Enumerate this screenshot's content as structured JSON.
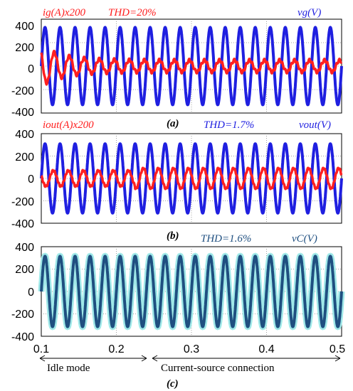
{
  "chart_data": [
    {
      "type": "line",
      "panel_label": "(a)",
      "ylim": [
        -400,
        400
      ],
      "yticks": [
        "400",
        "200",
        "0",
        "-200",
        "-400"
      ],
      "annotations": {
        "current_label": "ig(A)x200",
        "thd": "THD=20%",
        "voltage_label": "vg(V)"
      },
      "series": [
        {
          "name": "vg(V)",
          "color": "#1f1fe0",
          "amplitude": 330,
          "frequency_hz": 50
        },
        {
          "name": "ig(A)x200",
          "color": "#ff2020",
          "transient_peak": 170,
          "steady_amplitude": 50
        }
      ]
    },
    {
      "type": "line",
      "panel_label": "(b)",
      "ylim": [
        -400,
        400
      ],
      "yticks": [
        "400",
        "200",
        "0",
        "-200",
        "-400"
      ],
      "annotations": {
        "current_label": "iout(A)x200",
        "thd": "THD=1.7%",
        "voltage_label": "vout(V)"
      },
      "series": [
        {
          "name": "vout(V)",
          "color": "#1f1fe0",
          "amplitude": 310,
          "frequency_hz": 50
        },
        {
          "name": "iout(A)x200",
          "color": "#ff2020",
          "amplitude_idle": 70,
          "amplitude_after": 90
        }
      ]
    },
    {
      "type": "line",
      "panel_label": "(c)",
      "ylim": [
        -400,
        400
      ],
      "yticks": [
        "400",
        "200",
        "0",
        "-200",
        "-400"
      ],
      "annotations": {
        "thd": "THD=1.6%",
        "voltage_label": "vC(V)"
      },
      "series": [
        {
          "name": "vC(V)",
          "color": "#1f4f80",
          "amplitude": 315,
          "frequency_hz": 50
        }
      ],
      "xlim": [
        0.1,
        0.5
      ],
      "xticks": [
        "0.1",
        "0.2",
        "0.3",
        "0.4",
        "0.5"
      ]
    }
  ],
  "modes": {
    "idle": "Idle mode",
    "connection": "Current-source connection"
  },
  "colors": {
    "voltage": "#1f1fe0",
    "current": "#ff2020",
    "capacitor": "#1f4f80",
    "capacitor_glow": "#9fe8e8"
  }
}
